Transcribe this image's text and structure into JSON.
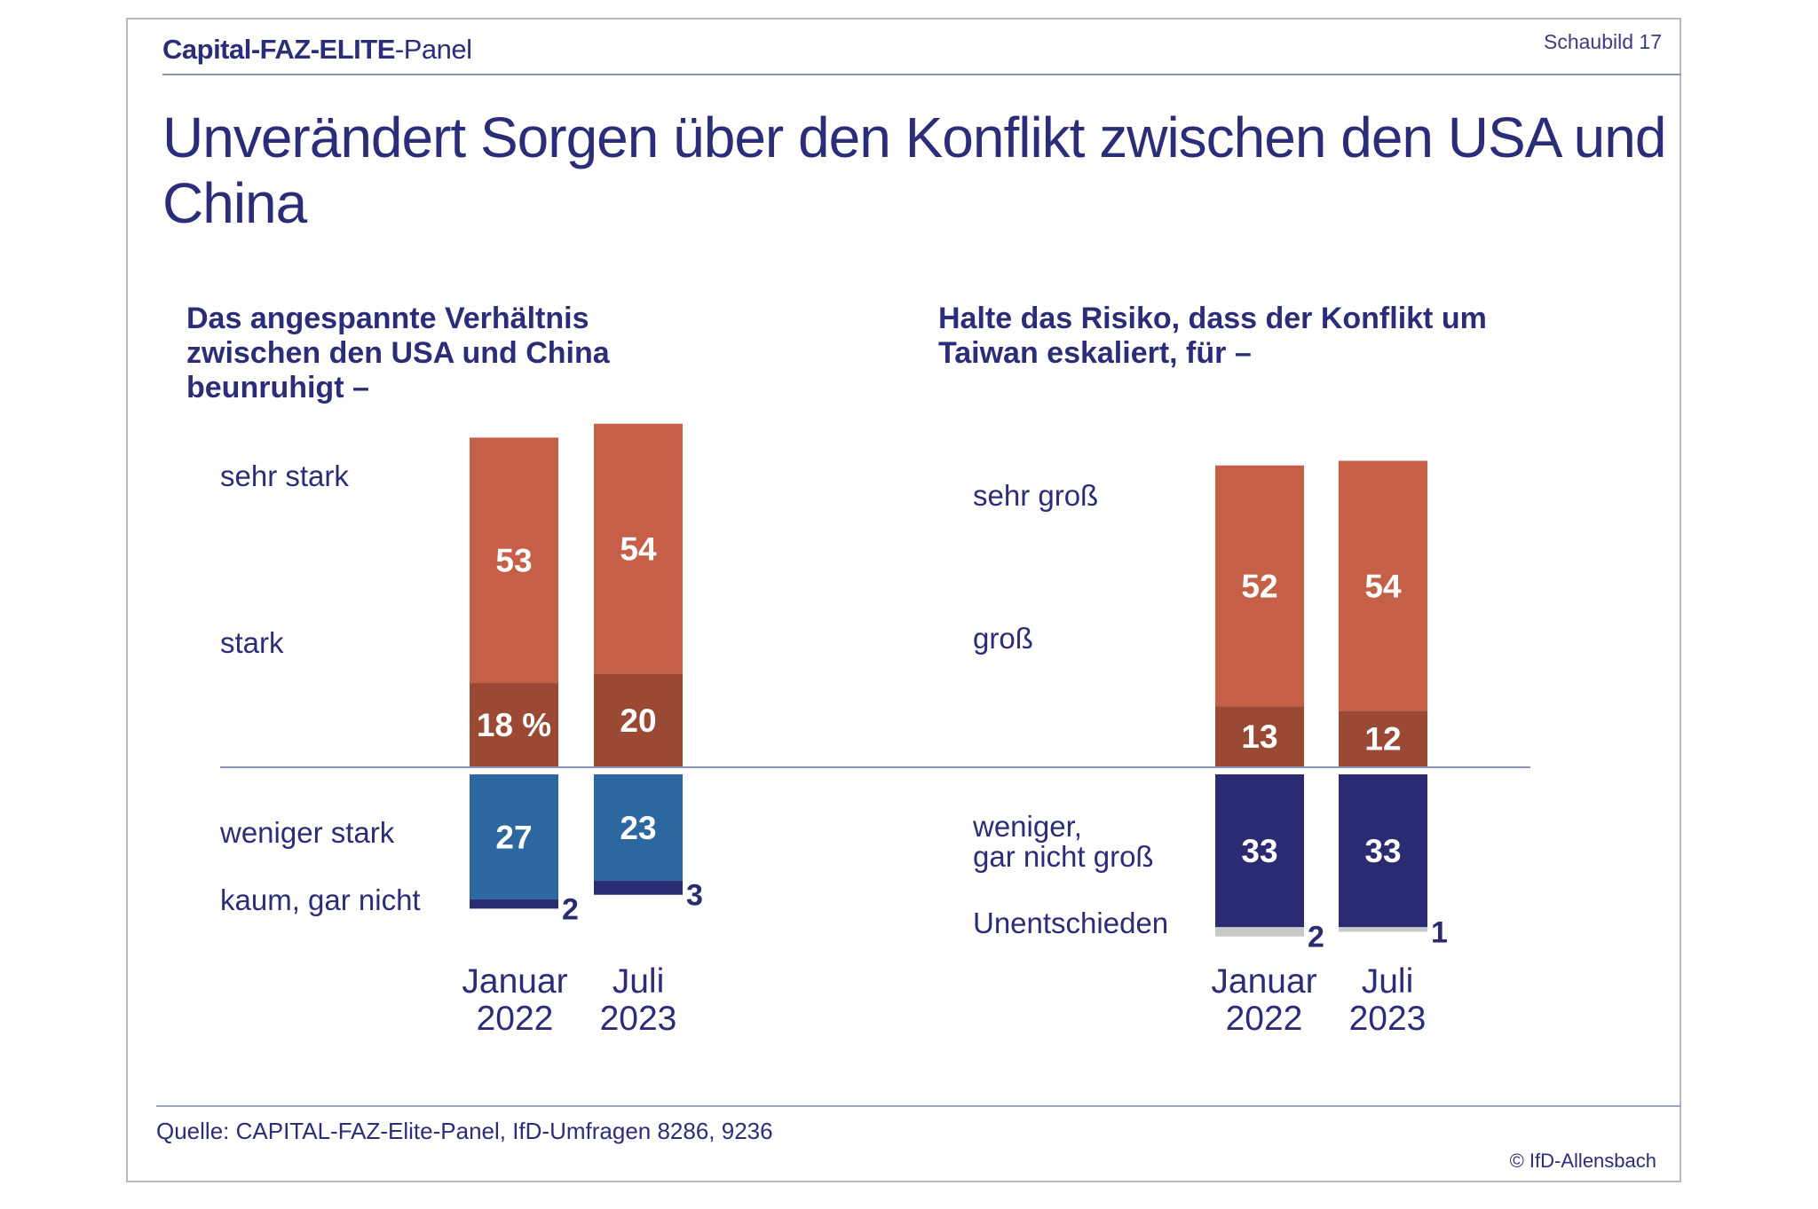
{
  "header": {
    "brand_bold": "Capital-FAZ-ELITE",
    "brand_rest": "-Panel",
    "figure_label": "Schaubild  17"
  },
  "title": "Unverändert Sorgen über den Konflikt zwischen den USA und China",
  "footer": {
    "source": "Quelle: CAPITAL-FAZ-Elite-Panel, IfD-Umfragen 8286, 9236",
    "copyright": "© IfD-Allensbach"
  },
  "colors": {
    "text": "#2b2d78",
    "very_high": "#9a4a34",
    "high": "#c55f48",
    "low": "#2d67a0",
    "none": "#2b2b72",
    "undecided": "#c9c9cc"
  },
  "chart_data": [
    {
      "type": "bar",
      "stacked": "diverging",
      "unit": "%",
      "title": "Das angespannte Verhältnis zwischen den USA und China beunruhigt –",
      "categories": [
        "Januar 2022",
        "Juli 2023"
      ],
      "category_lines": [
        [
          "Januar",
          "2022"
        ],
        [
          "Juli",
          "2023"
        ]
      ],
      "series": [
        {
          "name": "sehr stark",
          "values": [
            18,
            20
          ],
          "labels": [
            "18 %",
            "20"
          ],
          "direction": "up",
          "color": "#9a4a34"
        },
        {
          "name": "stark",
          "values": [
            53,
            54
          ],
          "labels": [
            "53",
            "54"
          ],
          "direction": "up",
          "color": "#c55f48"
        },
        {
          "name": "weniger stark",
          "values": [
            27,
            23
          ],
          "labels": [
            "27",
            "23"
          ],
          "direction": "down",
          "color": "#2d67a0"
        },
        {
          "name": "kaum, gar nicht",
          "values": [
            2,
            3
          ],
          "labels": [
            "2",
            "3"
          ],
          "direction": "down",
          "color": "#2b2b72"
        }
      ],
      "grid": false
    },
    {
      "type": "bar",
      "stacked": "diverging",
      "unit": "%",
      "title": "Halte das Risiko, dass der Konflikt um Taiwan eskaliert, für –",
      "categories": [
        "Januar 2022",
        "Juli 2023"
      ],
      "category_lines": [
        [
          "Januar",
          "2022"
        ],
        [
          "Juli",
          "2023"
        ]
      ],
      "series": [
        {
          "name": "sehr groß",
          "values": [
            13,
            12
          ],
          "labels": [
            "13",
            "12"
          ],
          "direction": "up",
          "color": "#9a4a34"
        },
        {
          "name": "groß",
          "values": [
            52,
            54
          ],
          "labels": [
            "52",
            "54"
          ],
          "direction": "up",
          "color": "#c55f48"
        },
        {
          "name": "weniger, gar nicht groß",
          "label_lines": [
            "weniger,",
            "gar nicht groß"
          ],
          "values": [
            33,
            33
          ],
          "labels": [
            "33",
            "33"
          ],
          "direction": "down",
          "color": "#2b2b72"
        },
        {
          "name": "Unentschieden",
          "values": [
            2,
            1
          ],
          "labels": [
            "2",
            "1"
          ],
          "direction": "down",
          "color": "#c9c9cc"
        }
      ],
      "grid": false
    }
  ]
}
